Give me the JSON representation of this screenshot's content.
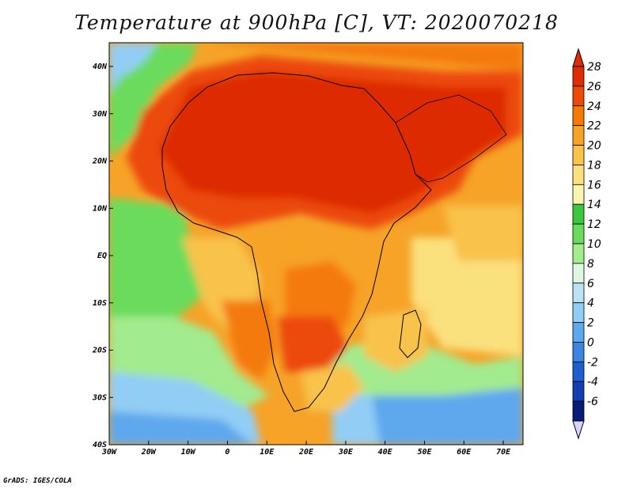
{
  "title": "Temperature at 900hPa [C], VT: 2020070218",
  "credit": "GrADS: IGES/COLA",
  "map": {
    "lon_ticks": [
      "30W",
      "20W",
      "10W",
      "0",
      "10E",
      "20E",
      "30E",
      "40E",
      "50E",
      "60E",
      "70E"
    ],
    "lat_ticks": [
      "40N",
      "30N",
      "20N",
      "10N",
      "EQ",
      "10S",
      "20S",
      "30S",
      "40S"
    ]
  },
  "colorbar": {
    "labels": [
      "28",
      "26",
      "24",
      "22",
      "20",
      "18",
      "16",
      "14",
      "12",
      "10",
      "8",
      "6",
      "4",
      "2",
      "0",
      "-2",
      "-4",
      "-6"
    ],
    "colors": [
      "#dd2c02",
      "#ec4a08",
      "#f47a08",
      "#f6a328",
      "#f8c24c",
      "#fbe07e",
      "#fbf5b0",
      "#3cc83c",
      "#6adb5c",
      "#a2eb8e",
      "#def8df",
      "#bce3f5",
      "#92cdf5",
      "#5ea8ee",
      "#3a86e2",
      "#1e5fd0",
      "#1240b0",
      "#0a1a78"
    ],
    "over_color": "#dd2c02",
    "under_color": "#d8d4f8"
  }
}
